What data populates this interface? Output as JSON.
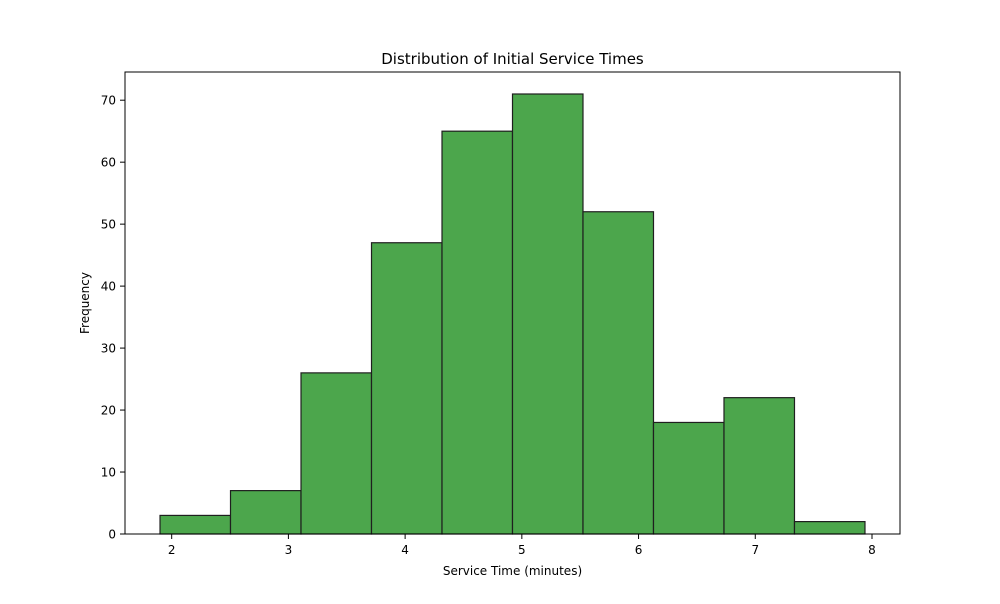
{
  "chart_data": {
    "type": "bar",
    "subtype": "histogram",
    "title": "Distribution of Initial Service Times",
    "xlabel": "Service Time (minutes)",
    "ylabel": "Frequency",
    "bin_edges": [
      1.9,
      2.504,
      3.108,
      3.712,
      4.316,
      4.92,
      5.524,
      6.128,
      6.732,
      7.336,
      7.94
    ],
    "values": [
      3,
      7,
      26,
      47,
      65,
      71,
      52,
      18,
      22,
      2
    ],
    "xlim": [
      1.6,
      8.24
    ],
    "ylim": [
      0,
      74.55
    ],
    "xticks": [
      "2",
      "3",
      "4",
      "5",
      "6",
      "7",
      "8"
    ],
    "yticks": [
      "0",
      "10",
      "20",
      "30",
      "40",
      "50",
      "60",
      "70"
    ],
    "grid": false,
    "bar_color": "#4ca64c",
    "edge_color": "#1f1f1f"
  }
}
